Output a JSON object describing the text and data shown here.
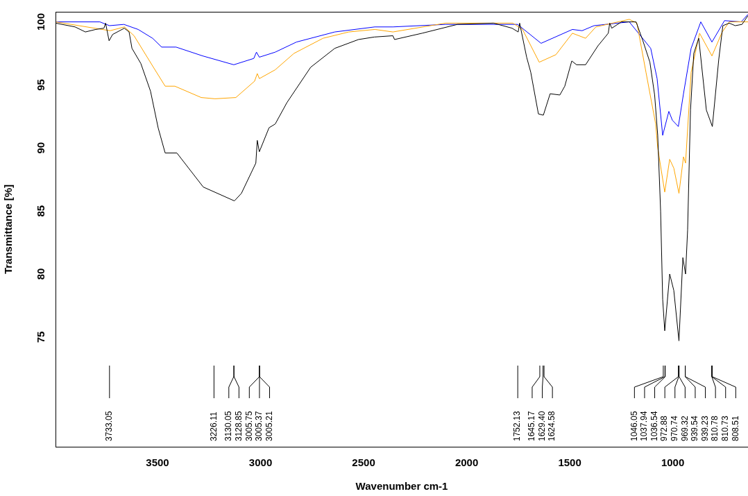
{
  "chart_data": {
    "type": "line",
    "xlabel": "Wavenumber cm-1",
    "ylabel": "Transmittance [%]",
    "xlim": [
      3995,
      635
    ],
    "xticks": [
      3500,
      3000,
      2500,
      2000,
      1500,
      1000
    ],
    "ylim": [
      66.3,
      100.8
    ],
    "yticks": [
      75,
      80,
      85,
      90,
      95,
      100
    ],
    "series": [
      {
        "color": "#000000",
        "x": [
          3995,
          3900,
          3850,
          3800,
          3760,
          3752,
          3735,
          3718,
          3661,
          3638,
          3624,
          3581,
          3534,
          3497,
          3463,
          3406,
          3278,
          3127,
          3093,
          3023,
          3016,
          3006,
          2959,
          2929,
          2872,
          2757,
          2640,
          2525,
          2448,
          2358,
          2350,
          2216,
          2045,
          1870,
          1780,
          1750,
          1743,
          1709,
          1689,
          1652,
          1628,
          1595,
          1548,
          1524,
          1490,
          1467,
          1423,
          1363,
          1313,
          1306,
          1296,
          1249,
          1178,
          1145,
          1111,
          1088,
          1073,
          1059,
          1049,
          1039,
          1015,
          995,
          970,
          951,
          938,
          928,
          914,
          898,
          874,
          837,
          808,
          777,
          757,
          726,
          697,
          664,
          635
        ],
        "values": [
          99.9,
          99.6,
          99.2,
          99.4,
          99.5,
          99.9,
          98.5,
          99.0,
          99.5,
          99.2,
          97.9,
          96.7,
          94.5,
          91.6,
          89.6,
          89.6,
          86.9,
          85.8,
          86.4,
          88.8,
          90.6,
          89.7,
          91.6,
          91.9,
          93.6,
          96.4,
          97.9,
          98.6,
          98.8,
          98.9,
          98.6,
          99.1,
          99.8,
          99.9,
          99.5,
          99.2,
          99.9,
          97.2,
          96.0,
          92.7,
          92.6,
          94.3,
          94.2,
          94.9,
          96.9,
          96.6,
          96.6,
          98.1,
          99.1,
          99.9,
          99.5,
          100.0,
          100.0,
          98.5,
          96.8,
          94.2,
          91.0,
          85.0,
          78.0,
          75.5,
          80.0,
          78.7,
          74.7,
          81.3,
          80.0,
          83.5,
          93.0,
          97.5,
          98.7,
          93.0,
          91.7,
          97.0,
          99.7,
          99.9,
          99.7,
          99.8,
          100.5
        ]
      },
      {
        "color": "#ffa500",
        "x": [
          3995,
          3730,
          3660,
          3614,
          3520,
          3463,
          3416,
          3288,
          3221,
          3120,
          3029,
          3016,
          3006,
          2929,
          2838,
          2697,
          2572,
          2445,
          2358,
          2102,
          1776,
          1729,
          1648,
          1567,
          1487,
          1423,
          1373,
          1211,
          1174,
          1130,
          1083,
          1073,
          1039,
          1015,
          995,
          970,
          948,
          938,
          911,
          870,
          810,
          760,
          726,
          635
        ],
        "values": [
          100.0,
          99.3,
          99.6,
          98.9,
          96.4,
          94.9,
          94.9,
          94.0,
          93.9,
          94.0,
          95.3,
          95.9,
          95.5,
          96.2,
          97.5,
          98.7,
          99.2,
          99.4,
          99.2,
          99.9,
          99.9,
          99.4,
          96.8,
          97.4,
          99.1,
          98.7,
          99.6,
          100.2,
          99.9,
          96.0,
          91.9,
          90.0,
          86.5,
          89.1,
          88.4,
          86.4,
          89.3,
          88.8,
          96.0,
          99.1,
          97.3,
          99.2,
          100.0,
          100.0
        ]
      },
      {
        "color": "#0000ff",
        "x": [
          3995,
          3780,
          3733,
          3663,
          3594,
          3524,
          3480,
          3410,
          3281,
          3130,
          3033,
          3020,
          3006,
          2929,
          2826,
          2640,
          2446,
          2358,
          2102,
          1753,
          1639,
          1487,
          1440,
          1382,
          1211,
          1107,
          1076,
          1049,
          1019,
          1002,
          973,
          948,
          911,
          864,
          810,
          749,
          668,
          635
        ],
        "values": [
          100.0,
          100.0,
          99.7,
          99.8,
          99.4,
          98.7,
          98.0,
          98.0,
          97.3,
          96.6,
          97.1,
          97.6,
          97.2,
          97.6,
          98.4,
          99.2,
          99.6,
          99.6,
          99.8,
          99.8,
          98.3,
          99.4,
          99.3,
          99.7,
          100.0,
          97.9,
          95.5,
          91.0,
          92.9,
          92.2,
          91.7,
          94.3,
          97.9,
          100.0,
          98.4,
          100.1,
          100.0,
          100.6
        ]
      }
    ],
    "annotations": [
      "3733.05",
      "3226.11",
      "3130.05",
      "3128.85",
      "3005.75",
      "3005.37",
      "3005.21",
      "1752.13",
      "1645.17",
      "1629.40",
      "1624.58",
      "1046.05",
      "1037.94",
      "1036.54",
      "972.88",
      "970.74",
      "969.32",
      "939.54",
      "939.23",
      "810.78",
      "810.73",
      "808.51"
    ]
  }
}
